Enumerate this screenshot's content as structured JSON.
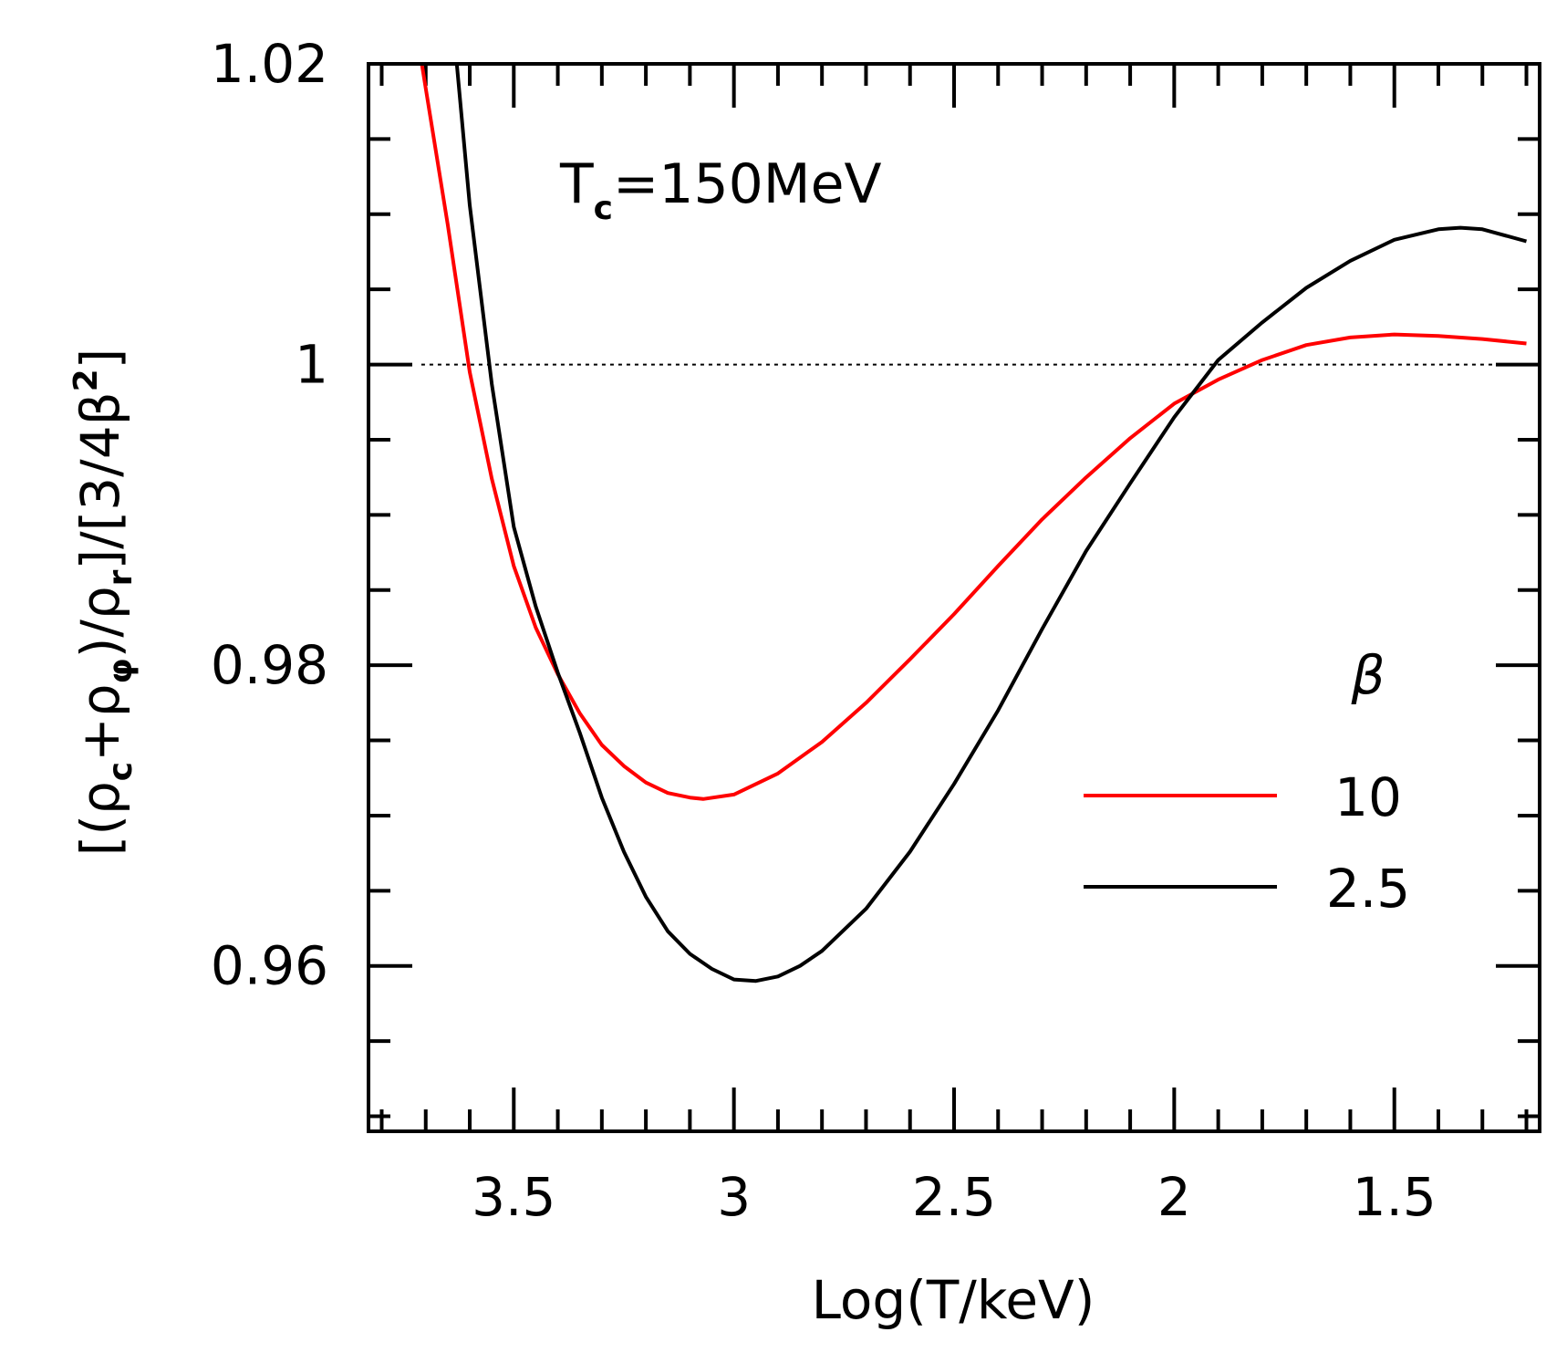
{
  "chart_data": {
    "type": "line",
    "xlabel": "Log(T/keV)",
    "ylabel": "[(ρc+ρφ)/ρr]/[3/4β²]",
    "xlim": [
      3.83,
      1.17
    ],
    "ylim": [
      0.949,
      1.02
    ],
    "x_reversed": true,
    "x_ticks": [
      3.5,
      3,
      2.5,
      2,
      1.5
    ],
    "x_tick_labels": [
      "3.5",
      "3",
      "2.5",
      "2",
      "1.5"
    ],
    "y_ticks": [
      0.96,
      0.98,
      1,
      1.02
    ],
    "y_tick_labels": [
      "0.96",
      "0.98",
      "1",
      "1.02"
    ],
    "y_minor_step": 0.005,
    "x_minor_step": 0.1,
    "reference_line": {
      "y": 1,
      "style": "dotted",
      "x_range": [
        3.71,
        1.21
      ]
    },
    "annotation": {
      "main": "T",
      "sub": "c",
      "rest": "=150MeV"
    },
    "ylabel_parts": {
      "open": "[(ρ",
      "sub1": "c",
      "plus": "+ρ",
      "sub2": "φ",
      "mid": ")/ρ",
      "sub3": "r",
      "tail": "]/[3/4β",
      "sup": "2",
      "close": "]"
    },
    "legend": {
      "title": "β",
      "position": "right"
    },
    "series": [
      {
        "name": "10",
        "color": "#ff0000",
        "x": [
          3.71,
          3.65,
          3.6,
          3.55,
          3.5,
          3.45,
          3.4,
          3.35,
          3.3,
          3.25,
          3.2,
          3.15,
          3.1,
          3.07,
          3.0,
          2.9,
          2.8,
          2.7,
          2.6,
          2.5,
          2.4,
          2.3,
          2.2,
          2.1,
          2.0,
          1.9,
          1.8,
          1.7,
          1.6,
          1.5,
          1.4,
          1.3,
          1.2
        ],
        "values": [
          1.0202,
          1.0093,
          0.9995,
          0.9924,
          0.9866,
          0.9825,
          0.9794,
          0.9768,
          0.9747,
          0.9733,
          0.9722,
          0.9715,
          0.9712,
          0.9711,
          0.9714,
          0.9728,
          0.9749,
          0.9775,
          0.9804,
          0.9834,
          0.9866,
          0.9897,
          0.9925,
          0.9951,
          0.9974,
          0.999,
          1.0003,
          1.0013,
          1.0018,
          1.002,
          1.0019,
          1.0017,
          1.0014
        ]
      },
      {
        "name": "2.5",
        "color": "#000000",
        "x": [
          3.63,
          3.6,
          3.55,
          3.5,
          3.45,
          3.4,
          3.35,
          3.3,
          3.25,
          3.2,
          3.15,
          3.1,
          3.05,
          3.0,
          2.95,
          2.9,
          2.85,
          2.8,
          2.7,
          2.6,
          2.5,
          2.4,
          2.3,
          2.2,
          2.1,
          2.0,
          1.9,
          1.8,
          1.7,
          1.6,
          1.5,
          1.4,
          1.35,
          1.3,
          1.2
        ],
        "values": [
          1.0202,
          1.0106,
          0.9987,
          0.9892,
          0.9839,
          0.9795,
          0.9755,
          0.9712,
          0.9676,
          0.9646,
          0.9623,
          0.9608,
          0.9598,
          0.9591,
          0.959,
          0.9593,
          0.96,
          0.961,
          0.9638,
          0.9676,
          0.9721,
          0.977,
          0.9824,
          0.9876,
          0.9921,
          0.9965,
          1.0003,
          1.0028,
          1.0051,
          1.0069,
          1.0083,
          1.009,
          1.0091,
          1.009,
          1.0082
        ]
      }
    ]
  }
}
